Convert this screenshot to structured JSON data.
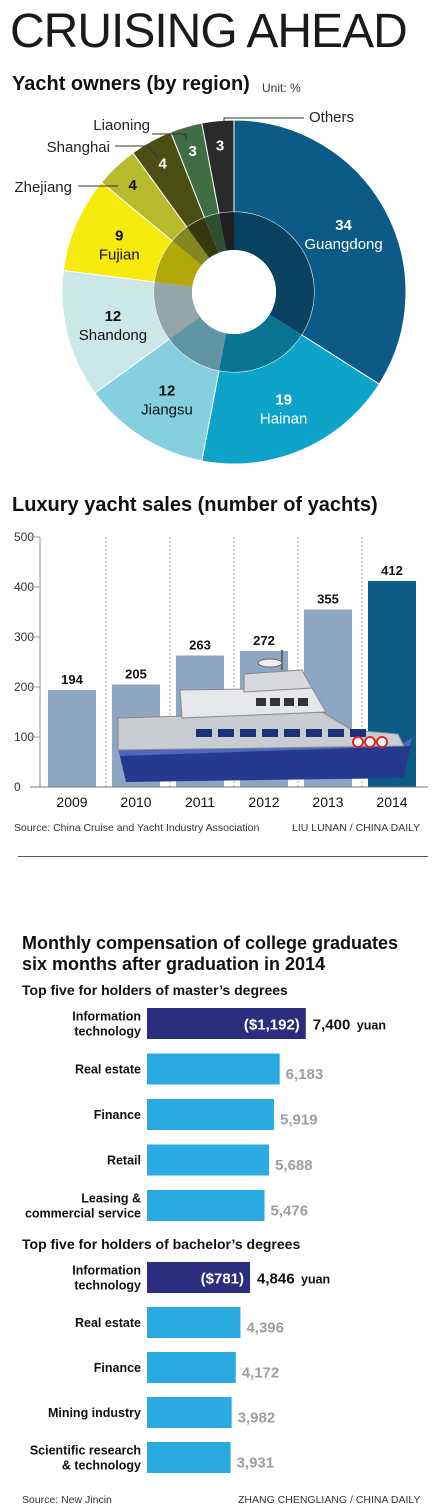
{
  "title": "CRUISING AHEAD",
  "pie": {
    "title": "Yacht owners (by region)",
    "unit": "Unit: %"
  },
  "bars": {
    "title": "Luxury yacht sales (number of yachts)",
    "source": "Source: China Cruise and Yacht Industry Association",
    "credit": "LIU LUNAN / CHINA DAILY"
  },
  "compensation": {
    "title_line1": "Monthly compensation of college graduates",
    "title_line2": "six months after graduation in 2014",
    "masters_heading": "Top five for holders of master’s degrees",
    "bachelors_heading": "Top five for holders of bachelor’s degrees",
    "source": "Source: New Jincin",
    "credit": "ZHANG CHENGLIANG / CHINA DAILY"
  },
  "chart_data": [
    {
      "type": "pie",
      "title": "Yacht owners (by region)",
      "unit": "Unit: %",
      "slices": [
        {
          "label": "Guangdong",
          "value": 34,
          "color": "#0c5a86"
        },
        {
          "label": "Hainan",
          "value": 19,
          "color": "#0ea3c9"
        },
        {
          "label": "Jiangsu",
          "value": 12,
          "color": "#86cfe0"
        },
        {
          "label": "Shandong",
          "value": 12,
          "color": "#cce7e8"
        },
        {
          "label": "Fujian",
          "value": 9,
          "color": "#f7ea0d"
        },
        {
          "label": "Zhejiang",
          "value": 4,
          "color": "#b7bb2b"
        },
        {
          "label": "Shanghai",
          "value": 4,
          "color": "#4a4e12"
        },
        {
          "label": "Liaoning",
          "value": 3,
          "color": "#3f6e45"
        },
        {
          "label": "Others",
          "value": 3,
          "color": "#2a2a2a"
        }
      ]
    },
    {
      "type": "bar",
      "title": "Luxury yacht sales (number of yachts)",
      "categories": [
        "2009",
        "2010",
        "2011",
        "2012",
        "2013",
        "2014"
      ],
      "values": [
        194,
        205,
        263,
        272,
        355,
        412
      ],
      "ylim": [
        0,
        500
      ],
      "yticks": [
        "0",
        "100",
        "200",
        "300",
        "400",
        "500"
      ],
      "colors": {
        "bar": "#8ea5c4",
        "highlight": "#0c5a86"
      },
      "grid": true
    },
    {
      "type": "bar",
      "orientation": "horizontal",
      "title": "Top five for holders of master’s degrees",
      "categories": [
        "Information technology",
        "Real estate",
        "Finance",
        "Retail",
        "Leasing & commercial service"
      ],
      "label_lines": [
        [
          "Information",
          "technology"
        ],
        [
          "Real estate"
        ],
        [
          "Finance"
        ],
        [
          "Retail"
        ],
        [
          "Leasing &",
          "commercial service"
        ]
      ],
      "values": [
        7400,
        6183,
        5919,
        5688,
        5476
      ],
      "value_labels": [
        "7,400",
        "6,183",
        "5,919",
        "5,688",
        "5,476"
      ],
      "unit": "yuan",
      "usd_label": "($1,192)",
      "colors": {
        "top": "#2b2e7f",
        "bar": "#29aae1",
        "value": "#9e9e9e"
      }
    },
    {
      "type": "bar",
      "orientation": "horizontal",
      "title": "Top five for holders of bachelor’s degrees",
      "categories": [
        "Information technology",
        "Real estate",
        "Finance",
        "Mining industry",
        "Scientific research & technology"
      ],
      "label_lines": [
        [
          "Information",
          "technology"
        ],
        [
          "Real estate"
        ],
        [
          "Finance"
        ],
        [
          "Mining industry"
        ],
        [
          "Scientific research",
          "& technology"
        ]
      ],
      "values": [
        4846,
        4396,
        4172,
        3982,
        3931
      ],
      "value_labels": [
        "4,846",
        "4,396",
        "4,172",
        "3,982",
        "3,931"
      ],
      "unit": "yuan",
      "usd_label": "($781)",
      "colors": {
        "top": "#2b2e7f",
        "bar": "#29aae1",
        "value": "#9e9e9e"
      }
    }
  ]
}
